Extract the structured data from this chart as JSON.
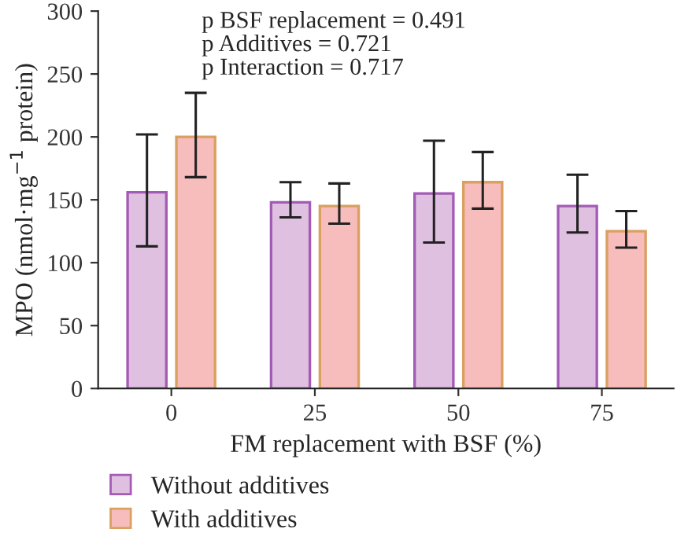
{
  "chart_data": {
    "type": "bar",
    "xlabel": "FM replacement with BSF (%)",
    "ylabel": "MPO (nmol·mg$^{−1}$ protein)",
    "categories": [
      "0",
      "25",
      "50",
      "75"
    ],
    "series": [
      {
        "name": "Without additives",
        "color": "#dfc0e0",
        "values": [
          156,
          148,
          155,
          145
        ],
        "errors": [
          [
            113,
            202
          ],
          [
            136,
            164
          ],
          [
            116,
            197
          ],
          [
            124,
            170
          ]
        ]
      },
      {
        "name": "With additives",
        "color": "#f7bcbc",
        "values": [
          200,
          145,
          164,
          125
        ],
        "errors": [
          [
            168,
            235
          ],
          [
            131,
            163
          ],
          [
            143,
            188
          ],
          [
            112,
            141
          ]
        ]
      }
    ],
    "ylim": [
      0,
      300
    ],
    "yticks": [
      0,
      50,
      100,
      150,
      200,
      250,
      300
    ],
    "grid": false,
    "legend": "bottom left",
    "annotations": [
      "p BSF replacement = 0.491",
      "p Additives = 0.721",
      "p Interaction = 0.717"
    ]
  }
}
